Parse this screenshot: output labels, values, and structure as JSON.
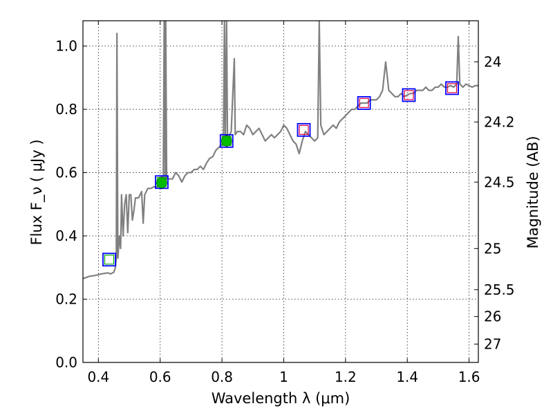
{
  "chart_data": {
    "type": "line",
    "xlabel": "Wavelength  λ (μm)",
    "ylabel": "Flux  F_ν  ( μJy )",
    "ylabel_right": "Magnitude (AB)",
    "xlim": [
      0.35,
      1.63
    ],
    "ylim": [
      0.0,
      1.08
    ],
    "grid": true,
    "x_ticks": [
      0.4,
      0.6,
      0.8,
      1.0,
      1.2,
      1.4,
      1.6
    ],
    "x_tick_labels": [
      "0.4",
      "0.6",
      "0.8",
      "1",
      "1.2",
      "1.4",
      "1.6"
    ],
    "y_ticks": [
      0.0,
      0.2,
      0.4,
      0.6,
      0.8,
      1.0
    ],
    "y_tick_labels": [
      "0.0",
      "0.2",
      "0.4",
      "0.6",
      "0.8",
      "1.0"
    ],
    "right_ticks": [
      {
        "label": "24",
        "flux": 0.95
      },
      {
        "label": "24.2",
        "flux": 0.76
      },
      {
        "label": "24.5",
        "flux": 0.57
      },
      {
        "label": "25",
        "flux": 0.36
      },
      {
        "label": "25.5",
        "flux": 0.23
      },
      {
        "label": "26",
        "flux": 0.145
      },
      {
        "label": "27",
        "flux": 0.058
      }
    ],
    "colors": {
      "spectrum": "#808080",
      "model_box": "#0000ff",
      "observed_square": "#00aa00",
      "observed_dot": "#00bb00",
      "upper_square": "#dd0044",
      "axes": "#000000"
    },
    "series": [
      {
        "style": "line",
        "color": "#808080",
        "points": [
          [
            0.35,
            0.265
          ],
          [
            0.37,
            0.272
          ],
          [
            0.39,
            0.275
          ],
          [
            0.41,
            0.28
          ],
          [
            0.43,
            0.283
          ],
          [
            0.44,
            0.28
          ],
          [
            0.45,
            0.285
          ],
          [
            0.455,
            0.3
          ],
          [
            0.458,
            0.33
          ],
          [
            0.46,
            1.04
          ],
          [
            0.463,
            0.33
          ],
          [
            0.468,
            0.4
          ],
          [
            0.472,
            0.36
          ],
          [
            0.475,
            0.53
          ],
          [
            0.48,
            0.4
          ],
          [
            0.485,
            0.5
          ],
          [
            0.49,
            0.53
          ],
          [
            0.495,
            0.41
          ],
          [
            0.5,
            0.53
          ],
          [
            0.505,
            0.53
          ],
          [
            0.51,
            0.45
          ],
          [
            0.515,
            0.48
          ],
          [
            0.52,
            0.52
          ],
          [
            0.53,
            0.52
          ],
          [
            0.54,
            0.54
          ],
          [
            0.545,
            0.44
          ],
          [
            0.55,
            0.53
          ],
          [
            0.56,
            0.55
          ],
          [
            0.57,
            0.55
          ],
          [
            0.58,
            0.555
          ],
          [
            0.59,
            0.555
          ],
          [
            0.6,
            0.56
          ],
          [
            0.605,
            0.56
          ],
          [
            0.61,
            0.58
          ],
          [
            0.613,
            1.08
          ],
          [
            0.616,
            0.58
          ],
          [
            0.618,
            1.08
          ],
          [
            0.621,
            0.58
          ],
          [
            0.63,
            0.58
          ],
          [
            0.64,
            0.58
          ],
          [
            0.65,
            0.6
          ],
          [
            0.66,
            0.59
          ],
          [
            0.67,
            0.57
          ],
          [
            0.68,
            0.59
          ],
          [
            0.69,
            0.6
          ],
          [
            0.7,
            0.6
          ],
          [
            0.71,
            0.61
          ],
          [
            0.72,
            0.61
          ],
          [
            0.73,
            0.62
          ],
          [
            0.74,
            0.61
          ],
          [
            0.75,
            0.63
          ],
          [
            0.76,
            0.645
          ],
          [
            0.77,
            0.65
          ],
          [
            0.78,
            0.67
          ],
          [
            0.79,
            0.68
          ],
          [
            0.8,
            0.69
          ],
          [
            0.805,
            0.7
          ],
          [
            0.808,
            1.08
          ],
          [
            0.811,
            0.7
          ],
          [
            0.815,
            1.08
          ],
          [
            0.818,
            0.7
          ],
          [
            0.82,
            0.7
          ],
          [
            0.825,
            0.72
          ],
          [
            0.83,
            0.73
          ],
          [
            0.84,
            0.96
          ],
          [
            0.843,
            0.72
          ],
          [
            0.85,
            0.73
          ],
          [
            0.86,
            0.73
          ],
          [
            0.87,
            0.72
          ],
          [
            0.88,
            0.75
          ],
          [
            0.89,
            0.74
          ],
          [
            0.9,
            0.72
          ],
          [
            0.91,
            0.73
          ],
          [
            0.92,
            0.74
          ],
          [
            0.93,
            0.72
          ],
          [
            0.94,
            0.7
          ],
          [
            0.95,
            0.71
          ],
          [
            0.96,
            0.72
          ],
          [
            0.97,
            0.71
          ],
          [
            0.98,
            0.72
          ],
          [
            0.99,
            0.73
          ],
          [
            1.0,
            0.75
          ],
          [
            1.01,
            0.74
          ],
          [
            1.02,
            0.72
          ],
          [
            1.03,
            0.7
          ],
          [
            1.04,
            0.69
          ],
          [
            1.05,
            0.66
          ],
          [
            1.06,
            0.7
          ],
          [
            1.07,
            0.73
          ],
          [
            1.08,
            0.72
          ],
          [
            1.09,
            0.71
          ],
          [
            1.1,
            0.7
          ],
          [
            1.11,
            0.71
          ],
          [
            1.115,
            1.08
          ],
          [
            1.12,
            0.75
          ],
          [
            1.13,
            0.72
          ],
          [
            1.14,
            0.73
          ],
          [
            1.15,
            0.74
          ],
          [
            1.16,
            0.75
          ],
          [
            1.17,
            0.74
          ],
          [
            1.18,
            0.76
          ],
          [
            1.19,
            0.77
          ],
          [
            1.2,
            0.78
          ],
          [
            1.21,
            0.79
          ],
          [
            1.22,
            0.8
          ],
          [
            1.23,
            0.8
          ],
          [
            1.24,
            0.81
          ],
          [
            1.25,
            0.82
          ],
          [
            1.26,
            0.82
          ],
          [
            1.27,
            0.82
          ],
          [
            1.28,
            0.83
          ],
          [
            1.29,
            0.83
          ],
          [
            1.3,
            0.83
          ],
          [
            1.31,
            0.84
          ],
          [
            1.32,
            0.86
          ],
          [
            1.33,
            0.95
          ],
          [
            1.34,
            0.86
          ],
          [
            1.35,
            0.85
          ],
          [
            1.36,
            0.84
          ],
          [
            1.37,
            0.84
          ],
          [
            1.38,
            0.85
          ],
          [
            1.39,
            0.84
          ],
          [
            1.4,
            0.845
          ],
          [
            1.41,
            0.85
          ],
          [
            1.42,
            0.85
          ],
          [
            1.43,
            0.86
          ],
          [
            1.44,
            0.86
          ],
          [
            1.45,
            0.86
          ],
          [
            1.46,
            0.87
          ],
          [
            1.47,
            0.86
          ],
          [
            1.48,
            0.86
          ],
          [
            1.49,
            0.87
          ],
          [
            1.5,
            0.87
          ],
          [
            1.51,
            0.88
          ],
          [
            1.52,
            0.87
          ],
          [
            1.53,
            0.87
          ],
          [
            1.54,
            0.875
          ],
          [
            1.55,
            0.87
          ],
          [
            1.56,
            0.88
          ],
          [
            1.565,
            1.03
          ],
          [
            1.57,
            0.88
          ],
          [
            1.58,
            0.87
          ],
          [
            1.59,
            0.88
          ],
          [
            1.6,
            0.875
          ],
          [
            1.61,
            0.87
          ],
          [
            1.62,
            0.875
          ],
          [
            1.63,
            0.875
          ]
        ]
      },
      {
        "style": "open-box",
        "color": "#0000ff",
        "points": [
          [
            0.435,
            0.325
          ],
          [
            0.605,
            0.57
          ],
          [
            0.815,
            0.7
          ],
          [
            1.065,
            0.735
          ],
          [
            1.26,
            0.82
          ],
          [
            1.405,
            0.845
          ],
          [
            1.545,
            0.867
          ]
        ]
      },
      {
        "style": "open-square",
        "color": "#00aa00",
        "points": [
          [
            0.435,
            0.325
          ],
          [
            0.605,
            0.57
          ],
          [
            0.815,
            0.7
          ]
        ]
      },
      {
        "style": "dot",
        "color": "#00bb00",
        "points": [
          [
            0.605,
            0.568
          ],
          [
            0.815,
            0.7
          ]
        ],
        "error": 0.02
      },
      {
        "style": "open-square",
        "color": "#dd0044",
        "points": [
          [
            1.065,
            0.735
          ],
          [
            1.26,
            0.82
          ],
          [
            1.405,
            0.845
          ],
          [
            1.545,
            0.867
          ]
        ]
      }
    ]
  }
}
